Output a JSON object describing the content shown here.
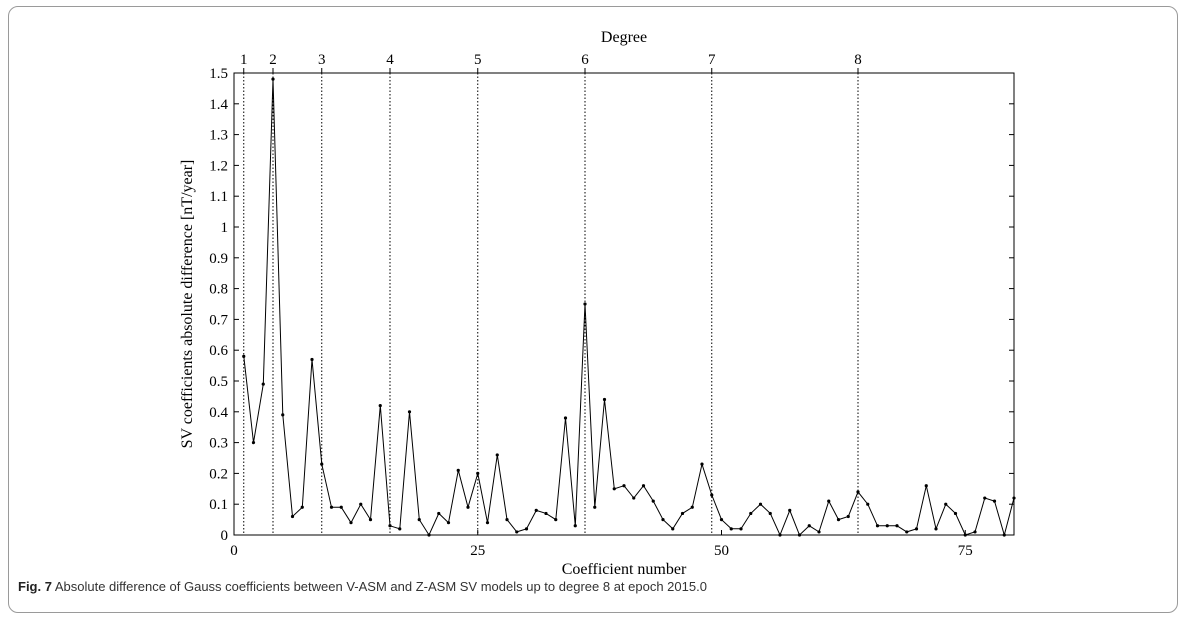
{
  "caption": {
    "label": "Fig. 7",
    "text": "Absolute difference of Gauss coefficients between V-ASM and Z-ASM SV models up to degree 8 at epoch 2015.0"
  },
  "chart_data": {
    "type": "line",
    "title": "",
    "xlabel": "Coefficient number",
    "ylabel": "SV coefficients absolute difference [nT/year]",
    "top_axis_label": "Degree",
    "xlim": [
      0,
      80
    ],
    "ylim": [
      0,
      1.5
    ],
    "x_ticks": [
      0,
      25,
      50,
      75
    ],
    "y_ticks": [
      0,
      0.1,
      0.2,
      0.3,
      0.4,
      0.5,
      0.6,
      0.7,
      0.8,
      0.9,
      1,
      1.1,
      1.2,
      1.3,
      1.4,
      1.5
    ],
    "y_tick_labels": [
      "0",
      "0.1",
      "0.2",
      "0.3",
      "0.4",
      "0.5",
      "0.6",
      "0.7",
      "0.8",
      "0.9",
      "1",
      "1.1",
      "1.2",
      "1.3",
      "1.4",
      "1.5"
    ],
    "degree_markers": [
      {
        "label": "1",
        "x": 1
      },
      {
        "label": "2",
        "x": 4
      },
      {
        "label": "3",
        "x": 9
      },
      {
        "label": "4",
        "x": 16
      },
      {
        "label": "5",
        "x": 25
      },
      {
        "label": "6",
        "x": 36
      },
      {
        "label": "7",
        "x": 49
      },
      {
        "label": "8",
        "x": 64
      }
    ],
    "grid": false,
    "series": [
      {
        "x": [
          1,
          2,
          3,
          4,
          5,
          6,
          7,
          8,
          9,
          10,
          11,
          12,
          13,
          14,
          15,
          16,
          17,
          18,
          19,
          20,
          21,
          22,
          23,
          24,
          25,
          26,
          27,
          28,
          29,
          30,
          31,
          32,
          33,
          34,
          35,
          36,
          37,
          38,
          39,
          40,
          41,
          42,
          43,
          44,
          45,
          46,
          47,
          48,
          49,
          50,
          51,
          52,
          53,
          54,
          55,
          56,
          57,
          58,
          59,
          60,
          61,
          62,
          63,
          64,
          65,
          66,
          67,
          68,
          69,
          70,
          71,
          72,
          73,
          74,
          75,
          76,
          77,
          78,
          79,
          80
        ],
        "y": [
          0.58,
          0.3,
          0.49,
          1.48,
          0.39,
          0.06,
          0.09,
          0.57,
          0.23,
          0.09,
          0.09,
          0.04,
          0.1,
          0.05,
          0.42,
          0.03,
          0.02,
          0.4,
          0.05,
          0.0,
          0.07,
          0.04,
          0.21,
          0.09,
          0.2,
          0.04,
          0.26,
          0.05,
          0.01,
          0.02,
          0.08,
          0.07,
          0.05,
          0.38,
          0.03,
          0.75,
          0.09,
          0.44,
          0.15,
          0.16,
          0.12,
          0.16,
          0.11,
          0.05,
          0.02,
          0.07,
          0.09,
          0.23,
          0.13,
          0.05,
          0.02,
          0.02,
          0.07,
          0.1,
          0.07,
          0.0,
          0.08,
          0.0,
          0.03,
          0.01,
          0.11,
          0.05,
          0.06,
          0.14,
          0.1,
          0.03,
          0.03,
          0.03,
          0.01,
          0.02,
          0.16,
          0.02,
          0.1,
          0.07,
          0.0,
          0.01,
          0.12,
          0.11,
          0.0,
          0.12
        ]
      }
    ]
  }
}
